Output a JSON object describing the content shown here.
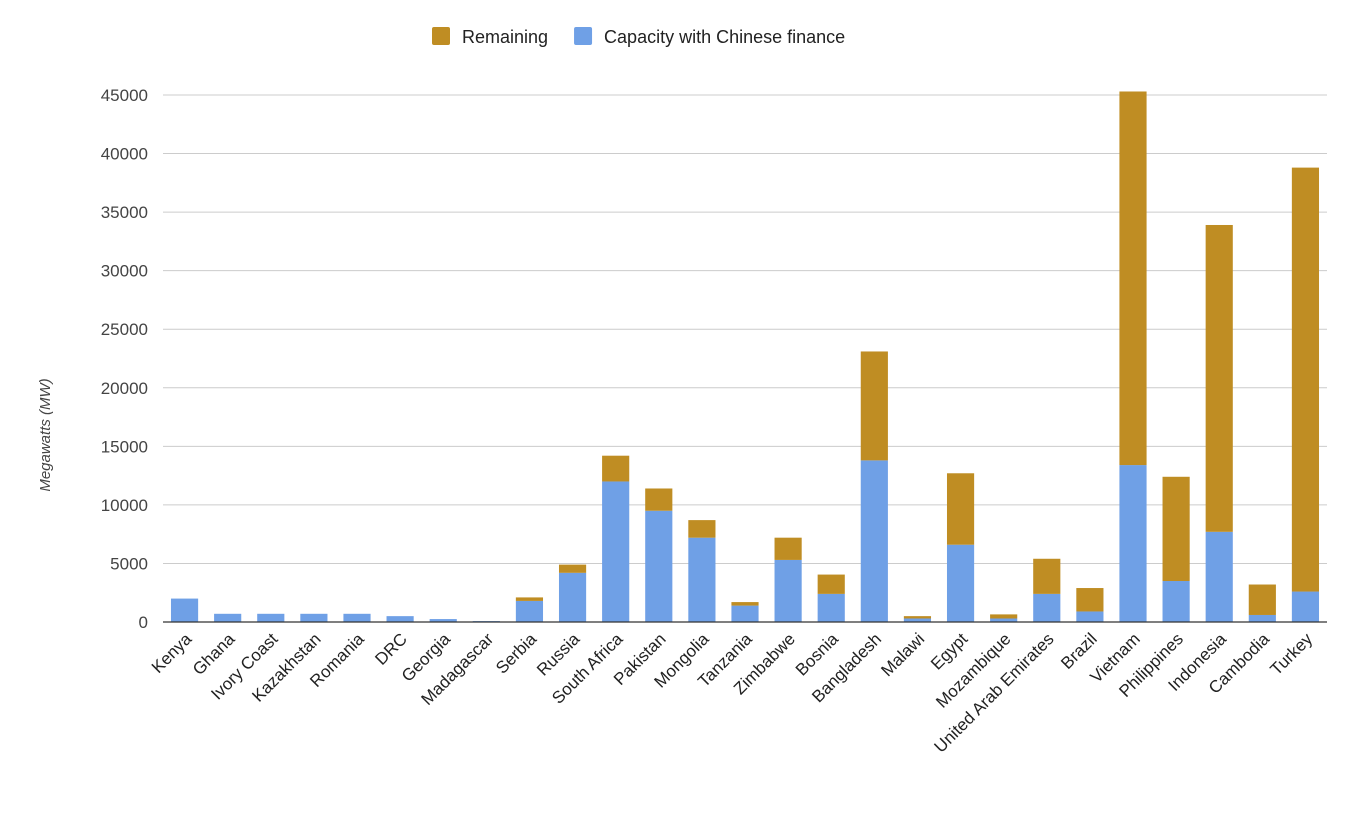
{
  "chart_data": {
    "type": "bar",
    "stacked": true,
    "ylabel": "Megawatts (MW)",
    "xlabel": "",
    "ylim": [
      0,
      45000
    ],
    "yticks": [
      0,
      5000,
      10000,
      15000,
      20000,
      25000,
      30000,
      35000,
      40000,
      45000
    ],
    "grid": true,
    "legend_position": "top-center",
    "categories": [
      "Kenya",
      "Ghana",
      "Ivory Coast",
      "Kazakhstan",
      "Romania",
      "DRC",
      "Georgia",
      "Madagascar",
      "Serbia",
      "Russia",
      "South Africa",
      "Pakistan",
      "Mongolia",
      "Tanzania",
      "Zimbabwe",
      "Bosnia",
      "Bangladesh",
      "Malawi",
      "Egypt",
      "Mozambique",
      "United Arab Emirates",
      "Brazil",
      "Vietnam",
      "Philippines",
      "Indonesia",
      "Cambodia",
      "Turkey"
    ],
    "series": [
      {
        "name": "Capacity with Chinese finance",
        "color": "#6fa0e6",
        "values": [
          2000,
          700,
          700,
          700,
          700,
          500,
          250,
          80,
          1800,
          4200,
          12000,
          9500,
          7200,
          1400,
          5300,
          2400,
          13800,
          300,
          6600,
          300,
          2400,
          900,
          13400,
          3500,
          7700,
          600,
          2600
        ]
      },
      {
        "name": "Remaining",
        "color": "#bf8d23",
        "values": [
          0,
          0,
          0,
          0,
          0,
          0,
          0,
          0,
          300,
          700,
          2200,
          1900,
          1500,
          300,
          1900,
          1650,
          9300,
          200,
          6100,
          350,
          3000,
          2000,
          31900,
          8900,
          26200,
          2600,
          36200
        ]
      }
    ]
  }
}
